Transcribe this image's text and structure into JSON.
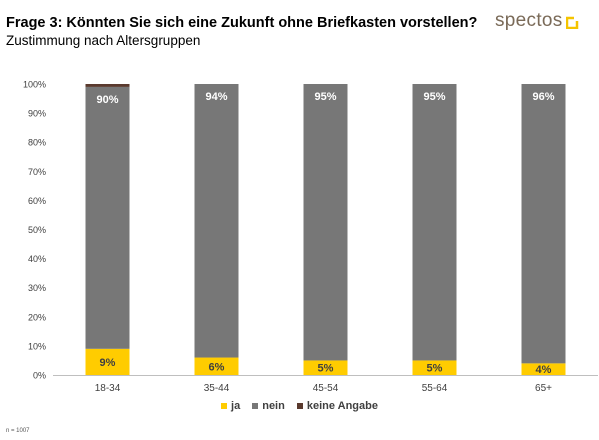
{
  "header": {
    "title": "Frage 3: Könnten Sie sich eine Zukunft ohne Briefkasten vorstellen?",
    "subtitle": "Zustimmung nach Altersgruppen"
  },
  "logo": {
    "text": "spectos",
    "color": "#f5c400"
  },
  "footnote": "n = 1007",
  "colors": {
    "ja": "#ffcc00",
    "nein": "#777777",
    "keine_angabe": "#5a3a2e"
  },
  "chart_data": {
    "type": "bar",
    "stacked": true,
    "categories": [
      "18-34",
      "35-44",
      "45-54",
      "55-64",
      "65+"
    ],
    "series": [
      {
        "name": "ja",
        "values": [
          9,
          6,
          5,
          5,
          4
        ],
        "labels": [
          "9%",
          "6%",
          "5%",
          "5%",
          "4%"
        ]
      },
      {
        "name": "nein",
        "values": [
          90,
          94,
          95,
          95,
          96
        ],
        "labels": [
          "90%",
          "94%",
          "95%",
          "95%",
          "96%"
        ]
      },
      {
        "name": "keine Angabe",
        "values": [
          1,
          0,
          0,
          0,
          0
        ],
        "labels": [
          "",
          "",
          "",
          "",
          ""
        ]
      }
    ],
    "ylim": [
      0,
      100
    ],
    "yticks": [
      "0%",
      "10%",
      "20%",
      "30%",
      "40%",
      "50%",
      "60%",
      "70%",
      "80%",
      "90%",
      "100%"
    ],
    "legend_position": "bottom",
    "grid": false
  }
}
